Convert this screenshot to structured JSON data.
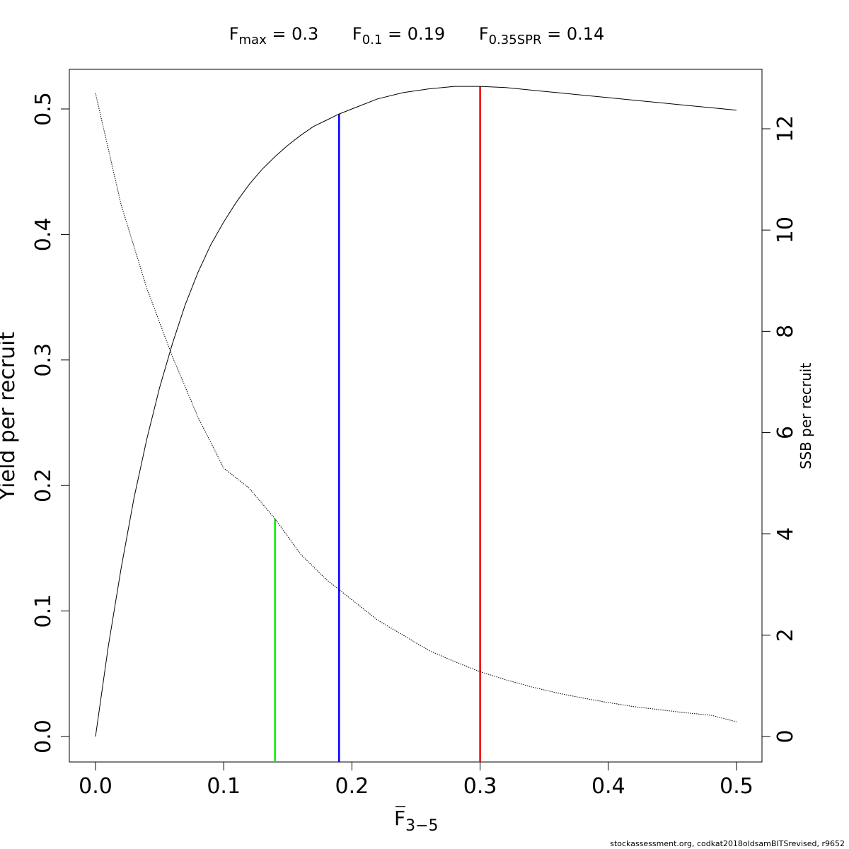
{
  "header": {
    "fmax_label": "F",
    "fmax_sub": "max",
    "fmax_value": " = 0.3",
    "f01_label": "F",
    "f01_sub": "0.1",
    "f01_value": " = 0.19",
    "fspr_label": "F",
    "fspr_sub": "0.35SPR",
    "fspr_value": " = 0.14"
  },
  "footer": {
    "credit": "stockassessment.org, codkat2018oldsamBITSrevised, r9652"
  },
  "chart_data": {
    "type": "line",
    "xlabel_main": "F",
    "xlabel_sub": "3−5",
    "ylabel_left": "Yield per recruit",
    "ylabel_right": "SSB per recruit",
    "xlim": [
      0,
      0.5
    ],
    "ylim_left": [
      0,
      0.52
    ],
    "ylim_right": [
      0,
      12.7
    ],
    "x_ticks": [
      "0.0",
      "0.1",
      "0.2",
      "0.3",
      "0.4",
      "0.5"
    ],
    "y_left_ticks": [
      "0.0",
      "0.1",
      "0.2",
      "0.3",
      "0.4",
      "0.5"
    ],
    "y_right_ticks": [
      "0",
      "2",
      "4",
      "6",
      "8",
      "10",
      "12"
    ],
    "grid": false,
    "series": [
      {
        "axis": "left",
        "style": "solid",
        "x": [
          0.0,
          0.01,
          0.02,
          0.03,
          0.04,
          0.05,
          0.06,
          0.07,
          0.08,
          0.09,
          0.1,
          0.11,
          0.12,
          0.13,
          0.14,
          0.15,
          0.16,
          0.17,
          0.18,
          0.19,
          0.2,
          0.22,
          0.24,
          0.26,
          0.28,
          0.3,
          0.32,
          0.34,
          0.36,
          0.38,
          0.4,
          0.42,
          0.44,
          0.46,
          0.48,
          0.5
        ],
        "y": [
          0.0,
          0.072,
          0.134,
          0.19,
          0.237,
          0.278,
          0.313,
          0.344,
          0.37,
          0.392,
          0.41,
          0.426,
          0.44,
          0.452,
          0.462,
          0.471,
          0.479,
          0.486,
          0.491,
          0.496,
          0.5,
          0.508,
          0.513,
          0.516,
          0.518,
          0.518,
          0.517,
          0.515,
          0.513,
          0.511,
          0.509,
          0.507,
          0.505,
          0.503,
          0.501,
          0.499
        ]
      },
      {
        "axis": "right",
        "style": "dotted",
        "x": [
          0.0,
          0.02,
          0.04,
          0.06,
          0.08,
          0.1,
          0.12,
          0.14,
          0.16,
          0.18,
          0.2,
          0.22,
          0.24,
          0.26,
          0.28,
          0.3,
          0.32,
          0.34,
          0.36,
          0.38,
          0.4,
          0.42,
          0.44,
          0.46,
          0.48,
          0.5
        ],
        "y": [
          12.7,
          10.5,
          8.85,
          7.5,
          6.3,
          5.3,
          4.9,
          4.3,
          3.6,
          3.1,
          2.7,
          2.3,
          2.0,
          1.7,
          1.48,
          1.28,
          1.12,
          0.98,
          0.86,
          0.76,
          0.67,
          0.59,
          0.53,
          0.47,
          0.42,
          0.29
        ]
      }
    ],
    "reference_lines": [
      {
        "name": "F0.35SPR",
        "x": 0.14,
        "axis": "right",
        "y_top": 4.3,
        "color": "#00ee00"
      },
      {
        "name": "F0.1",
        "x": 0.19,
        "axis": "left",
        "y_top": 0.496,
        "color": "#0000ff"
      },
      {
        "name": "Fmax",
        "x": 0.3,
        "axis": "left",
        "y_top": 0.518,
        "color": "#ee0000"
      }
    ]
  }
}
